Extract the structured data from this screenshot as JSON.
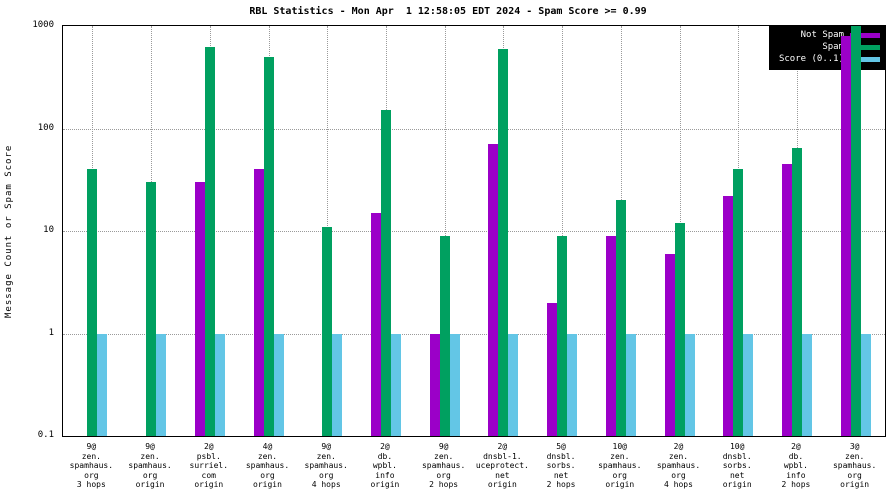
{
  "title": "RBL Statistics - Mon Apr  1 12:58:05 EDT 2024 - Spam Score >= 0.99",
  "ylabel": "Message Count or Spam Score",
  "chart_data": {
    "type": "bar",
    "scale": "log",
    "title": "RBL Statistics - Mon Apr  1 12:58:05 EDT 2024 - Spam Score >= 0.99",
    "xlabel": "",
    "ylabel": "Message Count or Spam Score",
    "ylim": [
      0.1,
      1000
    ],
    "yticks": [
      0.1,
      1,
      10,
      100,
      1000
    ],
    "grid": true,
    "legend_position": "top-right",
    "categories": [
      [
        "9@",
        "zen.",
        "spamhaus.",
        "org",
        "3 hops"
      ],
      [
        "9@",
        "zen.",
        "spamhaus.",
        "org",
        "origin"
      ],
      [
        "2@",
        "psbl.",
        "surriel.",
        "com",
        "origin"
      ],
      [
        "4@",
        "zen.",
        "spamhaus.",
        "org",
        "origin"
      ],
      [
        "9@",
        "zen.",
        "spamhaus.",
        "org",
        "4 hops"
      ],
      [
        "2@",
        "db.",
        "wpbl.",
        "info",
        "origin"
      ],
      [
        "9@",
        "zen.",
        "spamhaus.",
        "org",
        "2 hops"
      ],
      [
        "2@",
        "dnsbl-1.",
        "uceprotect.",
        "net",
        "origin"
      ],
      [
        "5@",
        "dnsbl.",
        "sorbs.",
        "net",
        "2 hops"
      ],
      [
        "10@",
        "zen.",
        "spamhaus.",
        "org",
        "origin"
      ],
      [
        "2@",
        "zen.",
        "spamhaus.",
        "org",
        "4 hops"
      ],
      [
        "10@",
        "dnsbl.",
        "sorbs.",
        "net",
        "origin"
      ],
      [
        "2@",
        "db.",
        "wpbl.",
        "info",
        "2 hops"
      ],
      [
        "3@",
        "zen.",
        "spamhaus.",
        "org",
        "origin"
      ]
    ],
    "series": [
      {
        "name": "Not Spam",
        "color": "#9b00c8",
        "values": [
          0,
          0,
          30,
          40,
          0,
          15,
          1,
          70,
          2,
          9,
          6,
          22,
          45,
          800
        ]
      },
      {
        "name": "Spam",
        "color": "#00a060",
        "values": [
          40,
          30,
          620,
          500,
          11,
          150,
          9,
          600,
          9,
          20,
          12,
          40,
          65,
          1000
        ]
      },
      {
        "name": "Score (0..1)",
        "color": "#63c6e6",
        "values": [
          1,
          1,
          1,
          1,
          1,
          1,
          1,
          1,
          1,
          1,
          1,
          1,
          1,
          1
        ]
      }
    ]
  }
}
